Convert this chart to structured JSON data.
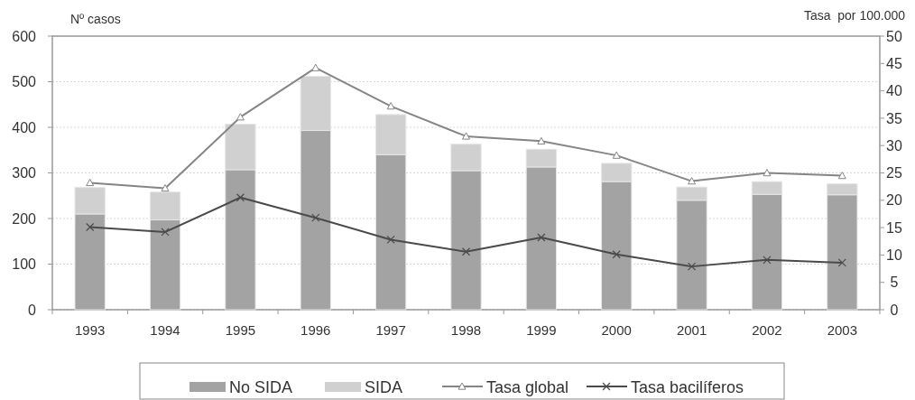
{
  "chart_data": {
    "type": "bar",
    "stacked": true,
    "categories": [
      "1993",
      "1994",
      "1995",
      "1996",
      "1997",
      "1998",
      "1999",
      "2000",
      "2001",
      "2002",
      "2003"
    ],
    "ylabel": "Nº casos",
    "y2label": "Tasa  por 100.000",
    "ylim": [
      0,
      600
    ],
    "yticks": [
      0,
      100,
      200,
      300,
      400,
      500,
      600
    ],
    "y2lim": [
      0,
      50
    ],
    "y2ticks": [
      0,
      5,
      10,
      15,
      20,
      25,
      30,
      35,
      40,
      45,
      50
    ],
    "grid": "y",
    "legend": "bottom",
    "series": [
      {
        "name": "No SIDA",
        "color": "#a3a3a3",
        "values": [
          210,
          197,
          307,
          393,
          340,
          305,
          313,
          281,
          240,
          253,
          252
        ]
      },
      {
        "name": "SIDA",
        "color": "#d0d0d0",
        "values": [
          58,
          61,
          100,
          119,
          88,
          58,
          39,
          40,
          29,
          28,
          24
        ]
      },
      {
        "name": "Tasa global",
        "type": "line",
        "axis": "y2",
        "color": "#858585",
        "marker": "triangle",
        "values": [
          23.2,
          22.2,
          35.2,
          44.2,
          37.2,
          31.7,
          30.8,
          28.2,
          23.5,
          25.0,
          24.5
        ]
      },
      {
        "name": "Tasa bacilíferos",
        "type": "line",
        "axis": "y2",
        "color": "#4a4a4a",
        "marker": "cross",
        "values": [
          15.1,
          14.2,
          20.5,
          16.8,
          12.8,
          10.6,
          13.2,
          10.1,
          7.9,
          9.1,
          8.6
        ]
      }
    ]
  }
}
